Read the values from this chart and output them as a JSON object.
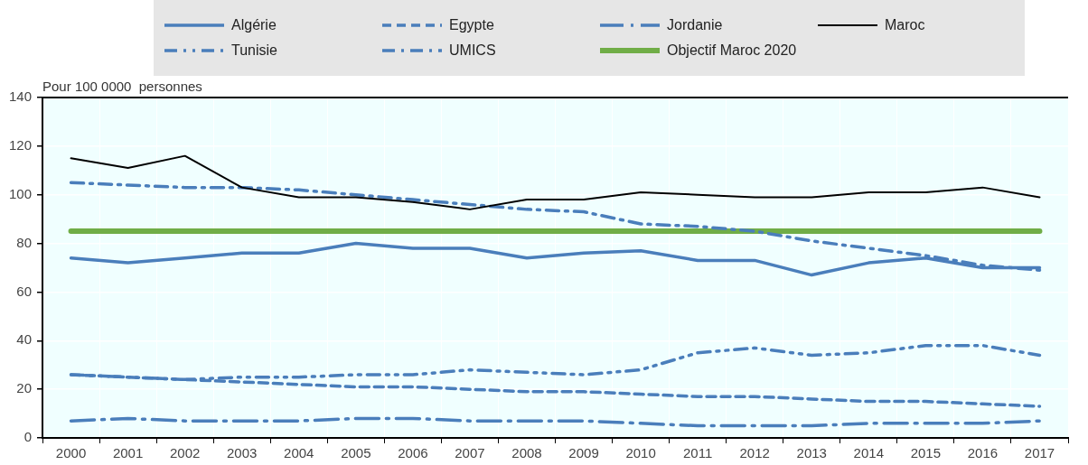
{
  "chart_data": {
    "type": "line",
    "ylabel": "Pour 100 0000  personnes",
    "categories": [
      "2000",
      "2001",
      "2002",
      "2003",
      "2004",
      "2005",
      "2006",
      "2007",
      "2008",
      "2009",
      "2010",
      "2011",
      "2012",
      "2013",
      "2014",
      "2015",
      "2016",
      "2017"
    ],
    "series": [
      {
        "name": "Algérie",
        "color": "#4a7ebb",
        "line_style": "solid",
        "values": [
          74,
          72,
          74,
          76,
          76,
          80,
          78,
          78,
          74,
          76,
          77,
          73,
          73,
          67,
          72,
          74,
          70,
          70
        ]
      },
      {
        "name": "Egypte",
        "color": "#4a7ebb",
        "line_style": "dashed",
        "values": [
          26,
          25,
          24,
          23,
          22,
          21,
          21,
          20,
          19,
          19,
          18,
          17,
          17,
          16,
          15,
          15,
          14,
          13
        ]
      },
      {
        "name": "Jordanie",
        "color": "#4a7ebb",
        "line_style": "longdashdot",
        "values": [
          7,
          8,
          7,
          7,
          7,
          8,
          8,
          7,
          7,
          7,
          6,
          5,
          5,
          5,
          6,
          6,
          6,
          7
        ]
      },
      {
        "name": "Maroc",
        "color": "#000000",
        "line_style": "solid",
        "values": [
          115,
          111,
          116,
          103,
          99,
          99,
          97,
          94,
          98,
          98,
          101,
          100,
          99,
          99,
          101,
          101,
          103,
          99
        ]
      },
      {
        "name": "Tunisie",
        "color": "#4a7ebb",
        "line_style": "dashdotdot",
        "values": [
          26,
          25,
          24,
          25,
          25,
          26,
          26,
          28,
          27,
          26,
          28,
          35,
          37,
          34,
          35,
          38,
          38,
          34
        ]
      },
      {
        "name": "UMICS",
        "color": "#4a7ebb",
        "line_style": "dashdot",
        "values": [
          105,
          104,
          103,
          103,
          102,
          100,
          98,
          96,
          94,
          93,
          88,
          87,
          85,
          81,
          78,
          75,
          71,
          69
        ]
      },
      {
        "name": "Objectif Maroc 2020",
        "color": "#70ad47",
        "line_style": "solid",
        "values": [
          85,
          85,
          85,
          85,
          85,
          85,
          85,
          85,
          85,
          85,
          85,
          85,
          85,
          85,
          85,
          85,
          85,
          85
        ]
      }
    ],
    "ylim": [
      0,
      140
    ],
    "yticks": [
      0,
      20,
      40,
      60,
      80,
      100,
      120,
      140
    ],
    "grid": true,
    "legend": "top",
    "marker": "none"
  }
}
